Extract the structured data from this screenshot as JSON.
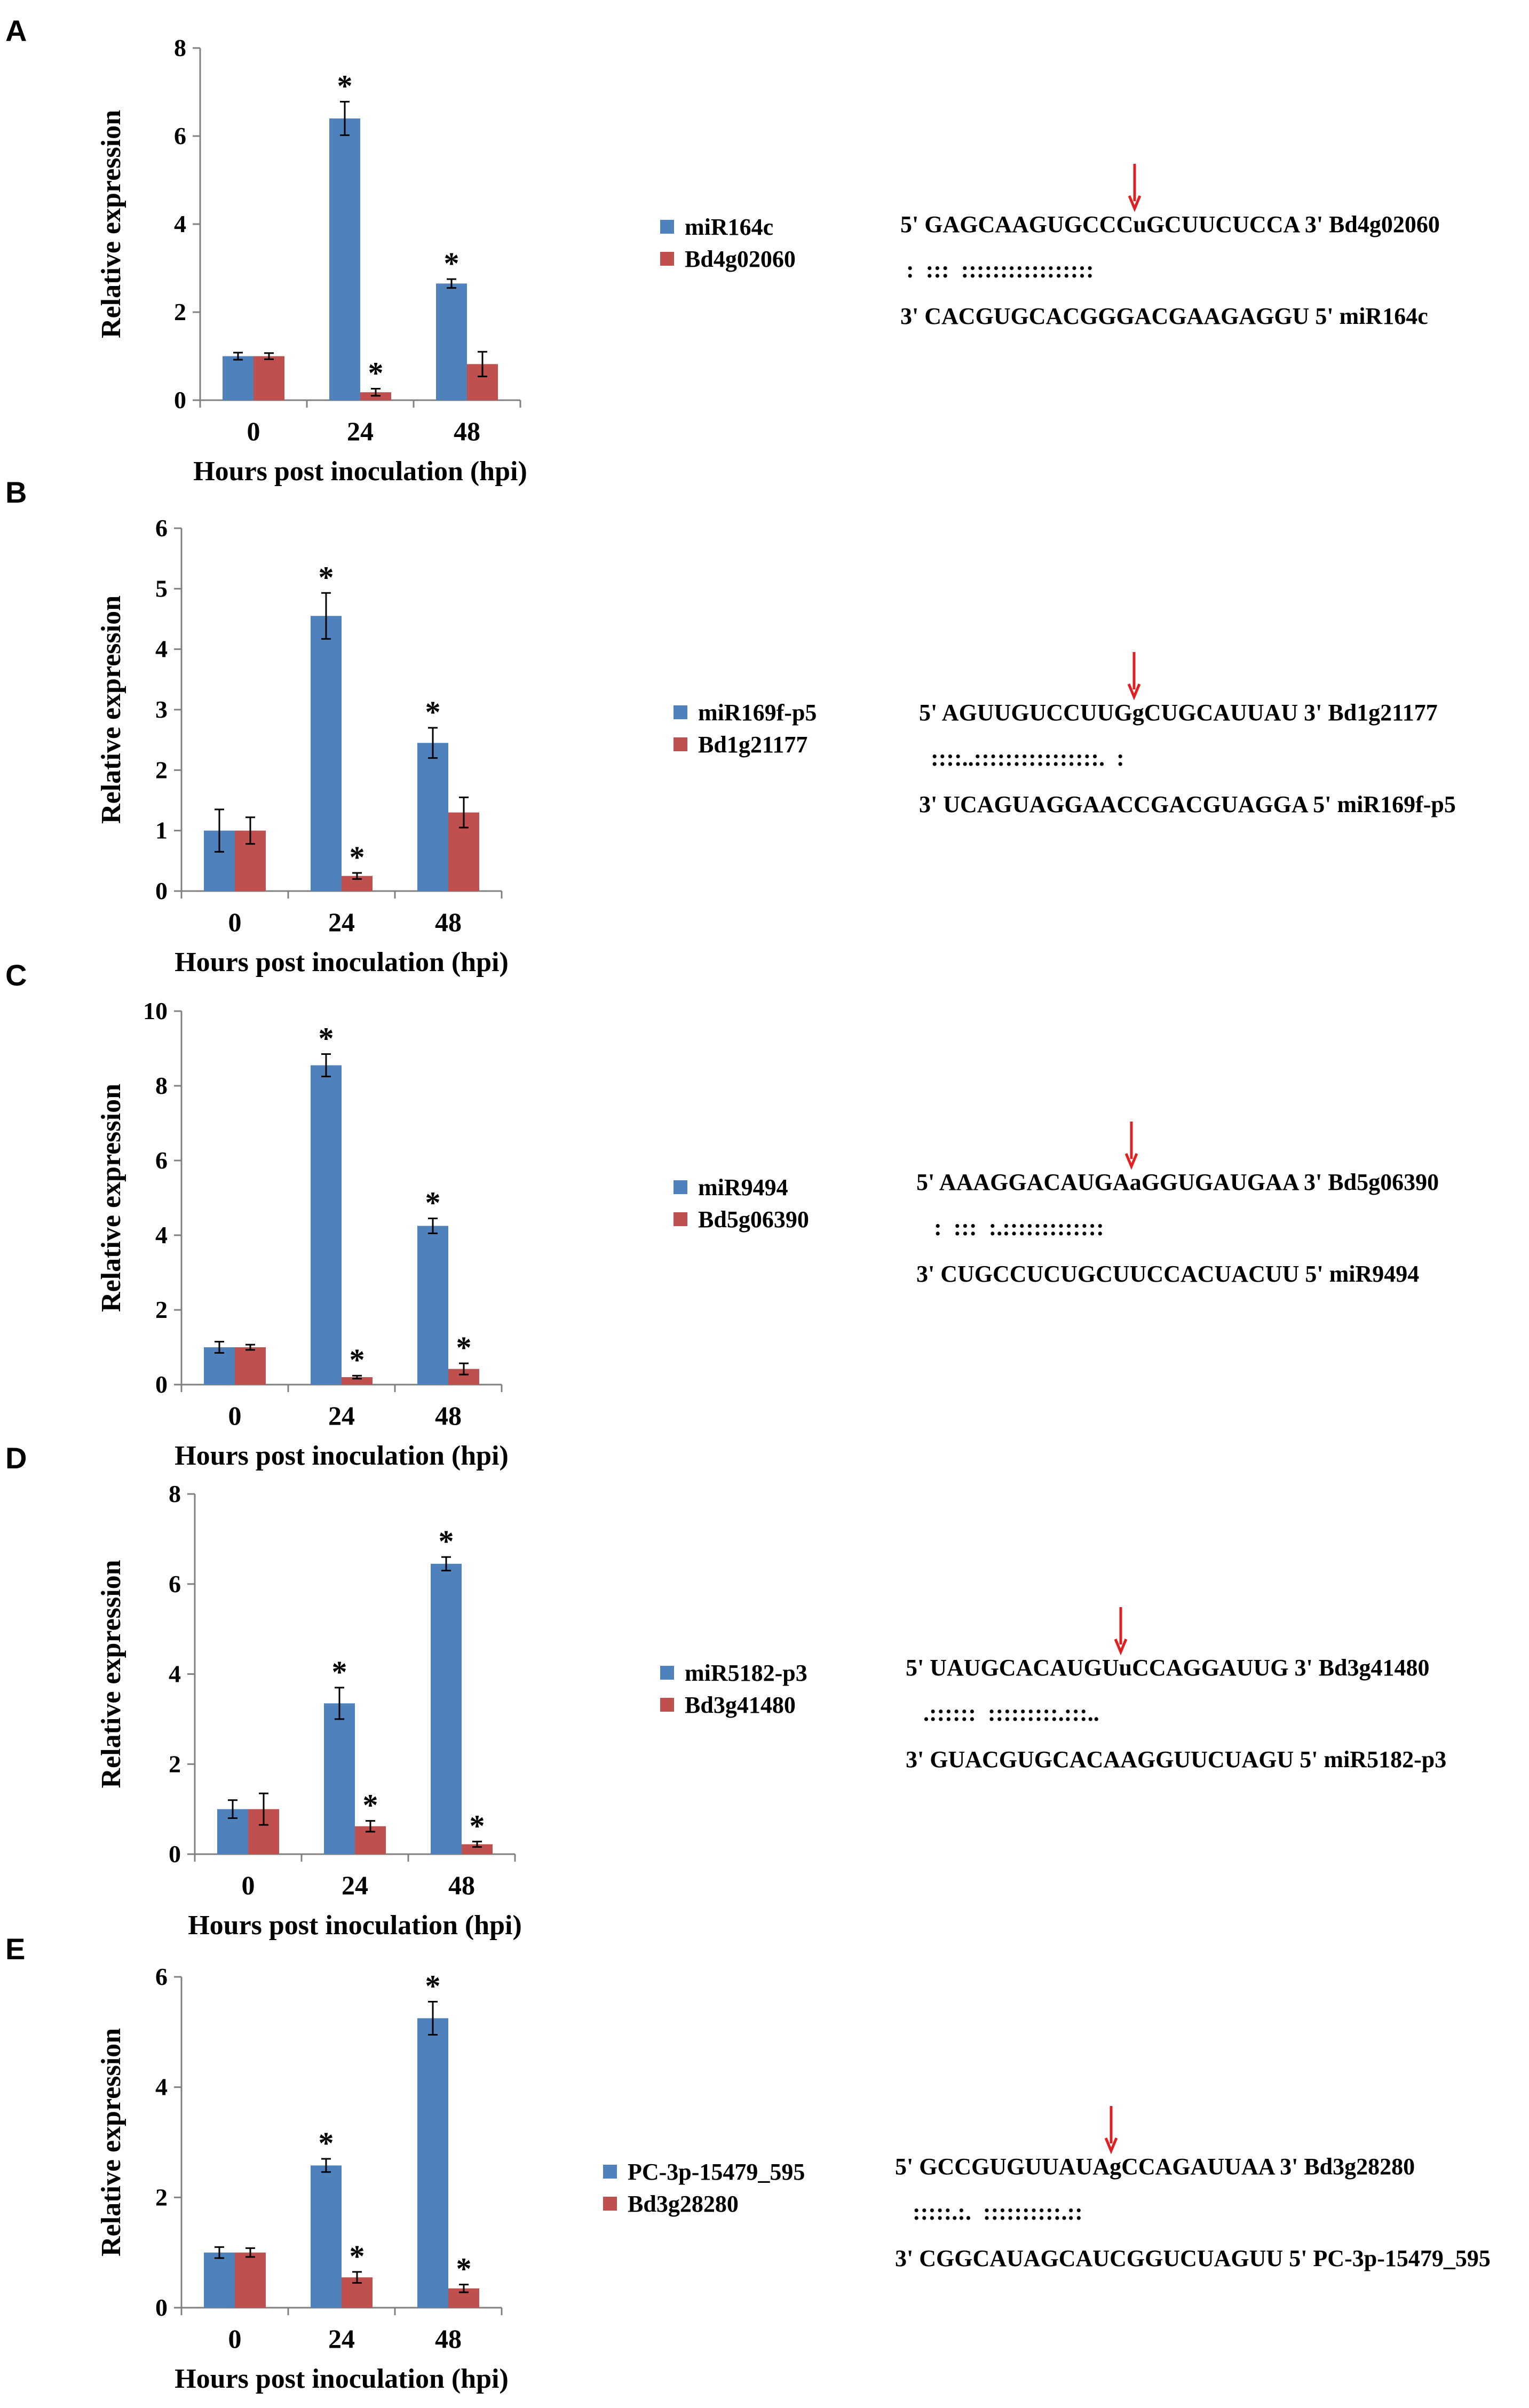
{
  "colors": {
    "mirna": "#4F81BD",
    "target": "#C0504D",
    "arrow": "#E02020"
  },
  "panels": [
    {
      "label": "A",
      "chart_data": {
        "type": "bar",
        "categories": [
          "0",
          "24",
          "48"
        ],
        "xlabel": "Hours post inoculation (hpi)",
        "ylabel": "Relative expression",
        "ylim": [
          0,
          8
        ],
        "yticks": [
          "0",
          "2",
          "4",
          "6",
          "8"
        ],
        "series": [
          {
            "name": "miR164c",
            "values": [
              1.0,
              6.4,
              2.65
            ],
            "errors": [
              0.08,
              0.38,
              0.1
            ],
            "sig": [
              "",
              "*",
              "*"
            ]
          },
          {
            "name": "Bd4g02060",
            "values": [
              1.0,
              0.18,
              0.82
            ],
            "errors": [
              0.07,
              0.08,
              0.28
            ],
            "sig": [
              "",
              "*",
              ""
            ]
          }
        ]
      },
      "alignment": {
        "top_pre": "5' GAGCAAGUGCCC",
        "top_cut": "u",
        "top_post": "GCUUCUCCA 3' Bd4g02060",
        "pairs": " :  :::  :::::::::::::::::",
        "bottom": "3' CACGUGCACGGGACGAAGAGGU 5' miR164c"
      }
    },
    {
      "label": "B",
      "chart_data": {
        "type": "bar",
        "categories": [
          "0",
          "24",
          "48"
        ],
        "xlabel": "Hours post inoculation (hpi)",
        "ylabel": "Relative expression",
        "ylim": [
          0,
          6
        ],
        "yticks": [
          "0",
          "1",
          "2",
          "3",
          "4",
          "5",
          "6"
        ],
        "series": [
          {
            "name": "miR169f-p5",
            "values": [
              1.0,
              4.55,
              2.45
            ],
            "errors": [
              0.35,
              0.38,
              0.25
            ],
            "sig": [
              "",
              "*",
              "*"
            ]
          },
          {
            "name": "Bd1g21177",
            "values": [
              1.0,
              0.25,
              1.3
            ],
            "errors": [
              0.22,
              0.05,
              0.25
            ],
            "sig": [
              "",
              "*",
              ""
            ]
          }
        ]
      },
      "alignment": {
        "top_pre": "5' AGUUGUCCUUG",
        "top_cut": "g",
        "top_post": "CUGCAUUAU 3' Bd1g21177",
        "pairs": "  ::::..::::::::::::::::.  :",
        "bottom": "3' UCAGUAGGAACCGACGUAGGA 5' miR169f-p5"
      }
    },
    {
      "label": "C",
      "chart_data": {
        "type": "bar",
        "categories": [
          "0",
          "24",
          "48"
        ],
        "xlabel": "Hours post inoculation (hpi)",
        "ylabel": "Relative expression",
        "ylim": [
          0,
          10
        ],
        "yticks": [
          "0",
          "2",
          "4",
          "6",
          "8",
          "10"
        ],
        "series": [
          {
            "name": "miR9494",
            "values": [
              1.0,
              8.55,
              4.25
            ],
            "errors": [
              0.15,
              0.3,
              0.2
            ],
            "sig": [
              "",
              "*",
              "*"
            ]
          },
          {
            "name": "Bd5g06390",
            "values": [
              1.0,
              0.2,
              0.42
            ],
            "errors": [
              0.07,
              0.04,
              0.15
            ],
            "sig": [
              "",
              "*",
              "*"
            ]
          }
        ]
      },
      "alignment": {
        "top_pre": "5' AAAGGACAUGA",
        "top_cut": "a",
        "top_post": "GGUGAUGAA 3' Bd5g06390",
        "pairs": "   :  :::  :.:::::::::::::",
        "bottom": "3' CUGCCUCUGCUUCCACUACUU 5' miR9494"
      }
    },
    {
      "label": "D",
      "chart_data": {
        "type": "bar",
        "categories": [
          "0",
          "24",
          "48"
        ],
        "xlabel": "Hours post inoculation (hpi)",
        "ylabel": "Relative expression",
        "ylim": [
          0,
          8
        ],
        "yticks": [
          "0",
          "2",
          "4",
          "6",
          "8"
        ],
        "series": [
          {
            "name": "miR5182-p3",
            "values": [
              1.0,
              3.35,
              6.45
            ],
            "errors": [
              0.2,
              0.35,
              0.15
            ],
            "sig": [
              "",
              "*",
              "*"
            ]
          },
          {
            "name": "Bd3g41480",
            "values": [
              1.0,
              0.62,
              0.22
            ],
            "errors": [
              0.35,
              0.12,
              0.06
            ],
            "sig": [
              "",
              "*",
              "*"
            ]
          }
        ]
      },
      "alignment": {
        "top_pre": "5' UAUGCACAUGU",
        "top_cut": "u",
        "top_post": "CCAGGAUUG 3' Bd3g41480",
        "pairs": "   .::::::  :::::::::.:::..",
        "bottom": "3' GUACGUGCACAAGGUUCUAGU 5' miR5182-p3"
      }
    },
    {
      "label": "E",
      "chart_data": {
        "type": "bar",
        "categories": [
          "0",
          "24",
          "48"
        ],
        "xlabel": "Hours post inoculation (hpi)",
        "ylabel": "Relative expression",
        "ylim": [
          0,
          6
        ],
        "yticks": [
          "0",
          "2",
          "4",
          "6"
        ],
        "series": [
          {
            "name": "PC-3p-15479_595",
            "values": [
              1.0,
              2.58,
              5.25
            ],
            "errors": [
              0.1,
              0.12,
              0.3
            ],
            "sig": [
              "",
              "*",
              "*"
            ]
          },
          {
            "name": "Bd3g28280",
            "values": [
              1.0,
              0.55,
              0.35
            ],
            "errors": [
              0.08,
              0.1,
              0.07
            ],
            "sig": [
              "",
              "*",
              "*"
            ]
          }
        ]
      },
      "alignment": {
        "top_pre": "5' GCCGUGUUAUA",
        "top_cut": "g",
        "top_post": "CCAGAUUAA 3' Bd3g28280",
        "pairs": "   :::::.:.  ::::::::::.::",
        "bottom": "3' CGGCAUAGCAUCGGUCUAGUU 5' PC-3p-15479_595"
      }
    }
  ]
}
